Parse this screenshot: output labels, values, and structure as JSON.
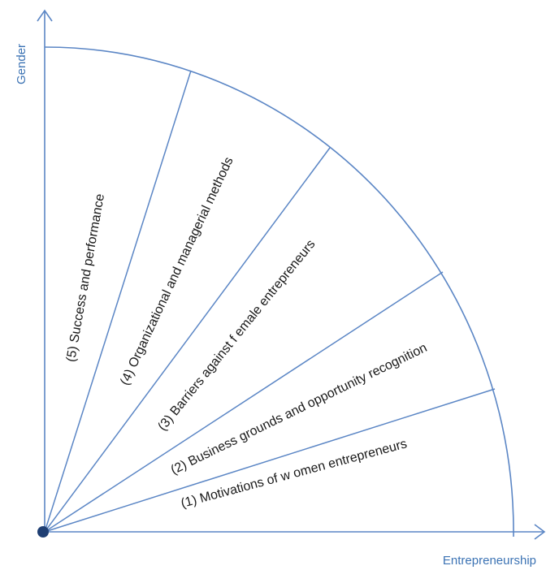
{
  "axes": {
    "y_label": "Gender",
    "x_label": "Entrepreneurship"
  },
  "colors": {
    "line": "#5b86c5",
    "axis_text": "#3c73b4",
    "origin_dot": "#1f3f73",
    "segment_text": "#1a1a1a"
  },
  "segments": [
    {
      "label": "(1) Motivations of w omen entrepreneurs"
    },
    {
      "label": "(2) Business grounds and opportunity recognition"
    },
    {
      "label": "(3) Barriers against f emale entrepreneurs"
    },
    {
      "label": "(4) Organizational and managerial methods"
    },
    {
      "label": "(5) Success and performance"
    }
  ]
}
